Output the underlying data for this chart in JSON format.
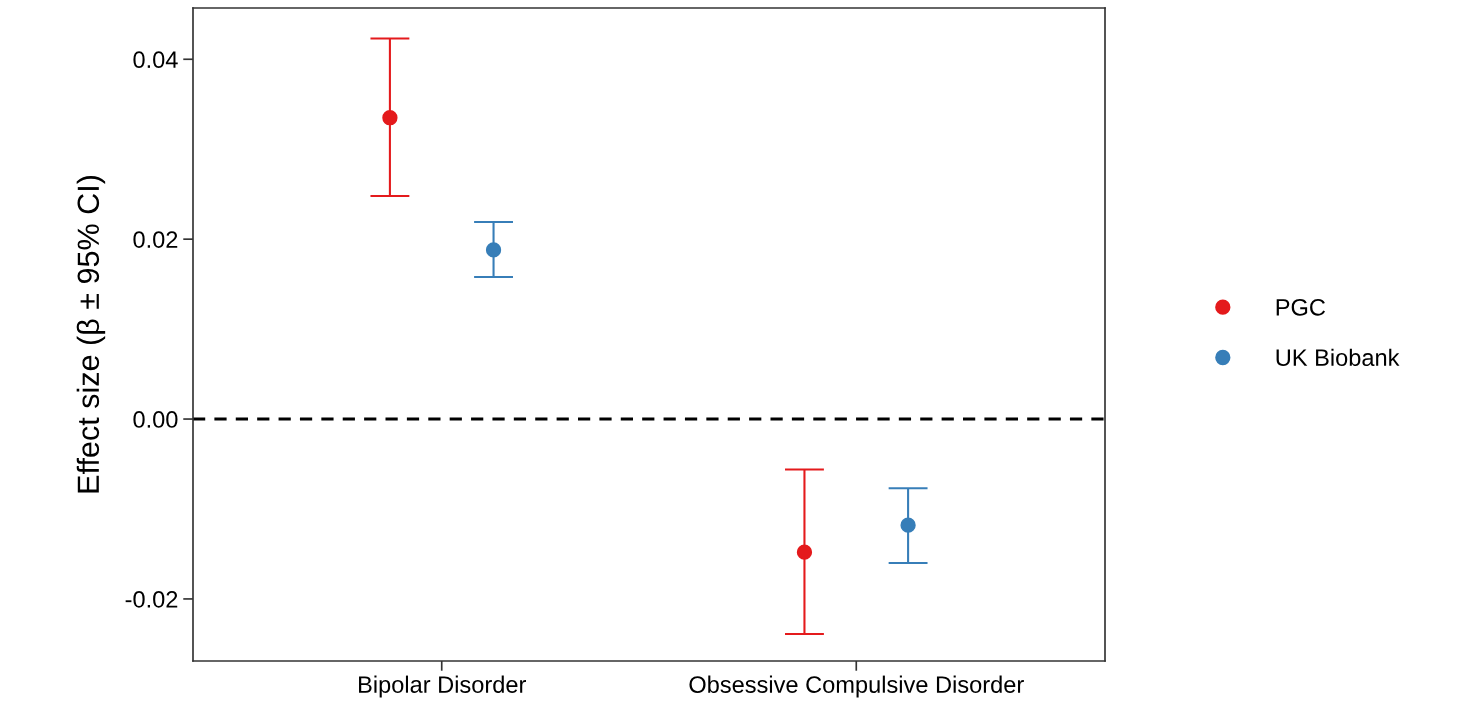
{
  "chart_data": {
    "type": "scatter",
    "ylabel": "Effect size (β ± 95% CI)",
    "categories": [
      "Bipolar Disorder",
      "Obsessive Compulsive Disorder"
    ],
    "series": [
      {
        "name": "PGC",
        "color": "#e41a1c",
        "values": [
          0.0335,
          -0.0148
        ],
        "errors": [
          [
            0.0248,
            0.0423
          ],
          [
            -0.0239,
            -0.0056
          ]
        ]
      },
      {
        "name": "UK Biobank",
        "color": "#377eb8",
        "values": [
          0.0188,
          -0.0118
        ],
        "errors": [
          [
            0.0158,
            0.0219
          ],
          [
            -0.016,
            -0.0077
          ]
        ]
      }
    ],
    "ylim": [
      -0.0269,
      0.0457
    ],
    "yticks": [
      {
        "value": -0.02,
        "label": "-0.02"
      },
      {
        "value": 0.0,
        "label": "0.00"
      },
      {
        "value": 0.02,
        "label": "0.02"
      },
      {
        "value": 0.04,
        "label": "0.04"
      }
    ],
    "ref_lines": [
      {
        "axis": "y",
        "value": 0.0,
        "color": "#000000",
        "line_style": "dashed"
      }
    ],
    "grid": false,
    "legend": "right",
    "marker": "circle"
  }
}
